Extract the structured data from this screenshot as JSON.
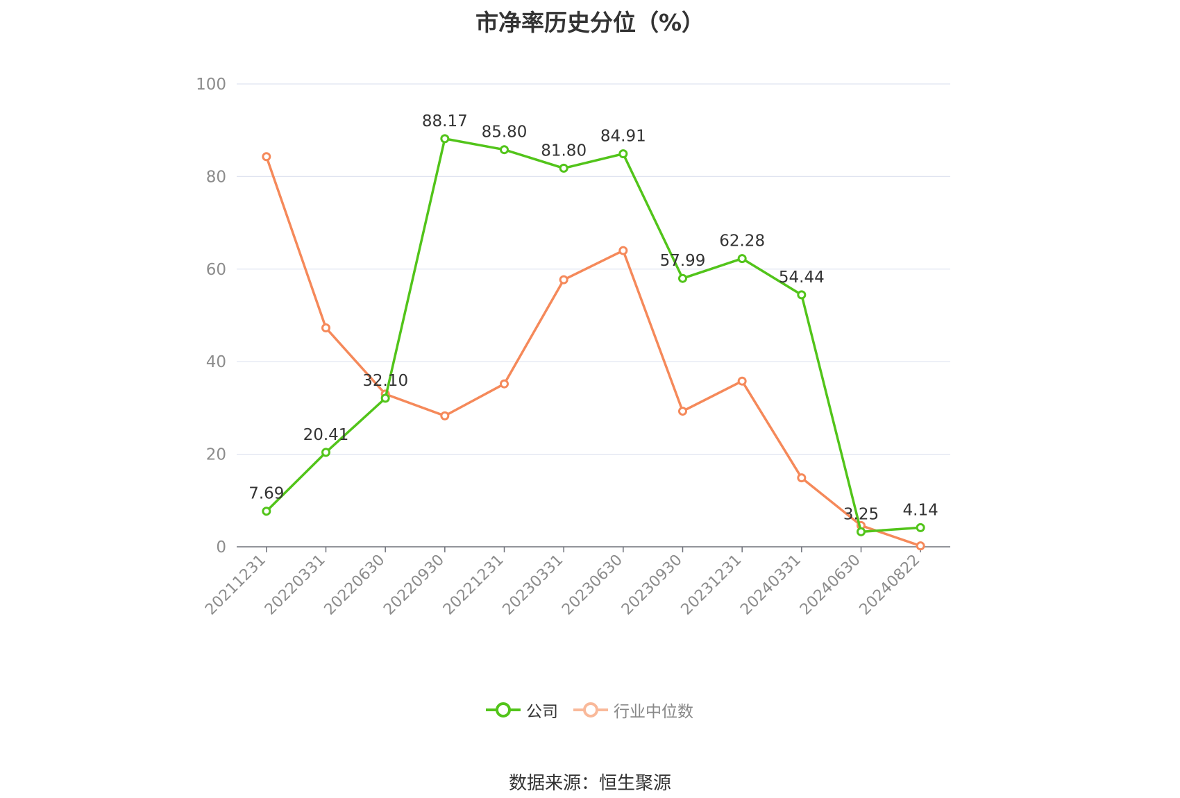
{
  "chart_data": {
    "type": "line",
    "title": "市净率历史分位（%）",
    "categories": [
      "20211231",
      "20220331",
      "20220630",
      "20220930",
      "20221231",
      "20230331",
      "20230630",
      "20230930",
      "20231231",
      "20240331",
      "20240630",
      "20240822"
    ],
    "ylim": [
      0,
      100
    ],
    "yticks": [
      0,
      20,
      40,
      60,
      80,
      100
    ],
    "grid": true,
    "legend_position": "bottom-center",
    "series": [
      {
        "name": "公司",
        "color": "#52c41a",
        "values": [
          7.69,
          20.41,
          32.1,
          88.17,
          85.8,
          81.8,
          84.91,
          57.99,
          62.28,
          54.44,
          3.25,
          4.14
        ],
        "labels": [
          "7.69",
          "20.41",
          "32.10",
          "88.17",
          "85.80",
          "81.80",
          "84.91",
          "57.99",
          "62.28",
          "54.44",
          "3.25",
          "4.14"
        ]
      },
      {
        "name": "行业中位数",
        "color": "#f5895a",
        "values": [
          84.3,
          47.3,
          33.0,
          28.3,
          35.2,
          57.7,
          64.0,
          29.3,
          35.8,
          14.9,
          4.6,
          0.2
        ]
      }
    ]
  },
  "legend": {
    "company_label": "公司",
    "industry_label": "行业中位数"
  },
  "source": "数据来源：恒生聚源"
}
